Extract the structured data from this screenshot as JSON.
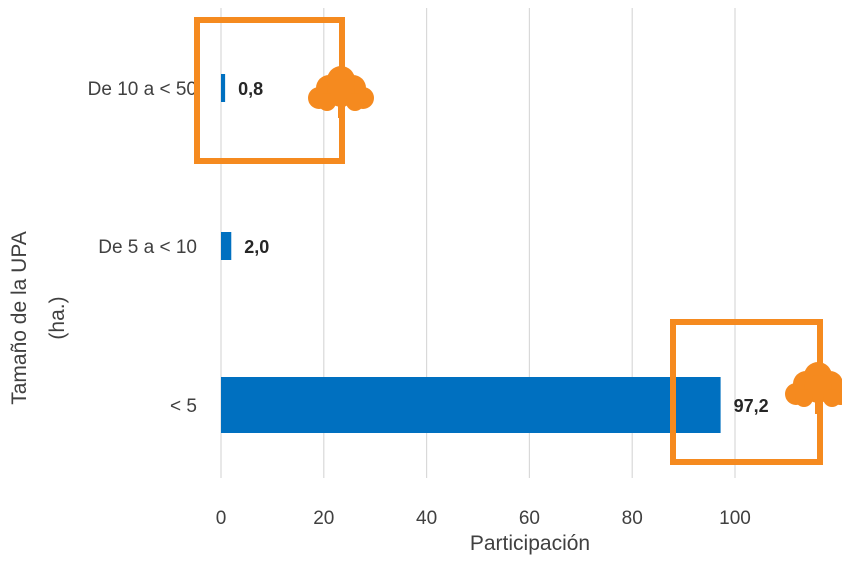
{
  "chart_data": {
    "type": "bar",
    "orientation": "horizontal",
    "categories": [
      "De 10 a < 50",
      "De 5 a < 10",
      "< 5"
    ],
    "values": [
      0.8,
      2.0,
      97.2
    ],
    "value_labels": [
      "0,8",
      "2,0",
      "97,2"
    ],
    "xlabel": "Participación",
    "ylabel_lines": [
      "Tamaño de la UPA",
      "(ha.)"
    ],
    "xlim": [
      0,
      120
    ],
    "xticks": [
      0,
      20,
      40,
      60,
      80,
      100
    ],
    "grid": "vertical",
    "bar_color": "#0070C0",
    "highlight_color": "#F58A1F",
    "highlights": [
      {
        "category": "De 10 a < 50",
        "icon": "tree-icon"
      },
      {
        "category": "< 5",
        "icon": "tree-icon"
      }
    ]
  }
}
